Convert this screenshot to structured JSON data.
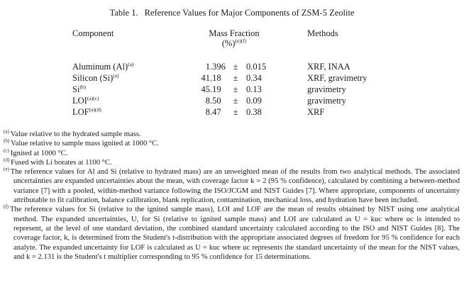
{
  "title": {
    "label": "Table 1.",
    "text": "Reference Values for Major Components of ZSM-5 Zeolite"
  },
  "table": {
    "headers": {
      "component": "Component",
      "mass_fraction_line1": "Mass Fraction",
      "mass_fraction_line2": "(%)",
      "mass_fraction_sup": "(e)(f)",
      "methods": "Methods"
    },
    "plus_minus": "±",
    "rows": [
      {
        "component": "Aluminum (Al)",
        "sup": "(a)",
        "value": "1.396",
        "uncertainty": "0.015",
        "methods": "XRF, INAA"
      },
      {
        "component": "Silicon (Si)",
        "sup": "(a)",
        "value": "41.18",
        "uncertainty": "0.34",
        "methods": "XRF, gravimetry"
      },
      {
        "component": "Si",
        "sup": "(b)",
        "value": "45.19",
        "uncertainty": "0.13",
        "methods": "gravimetry"
      },
      {
        "component": "LOI",
        "sup": "(a)(c)",
        "value": "8.50",
        "uncertainty": "0.09",
        "methods": "gravimetry"
      },
      {
        "component": "LOF",
        "sup": "(a)(d)",
        "value": "8.47",
        "uncertainty": "0.38",
        "methods": "XRF"
      }
    ]
  },
  "footnotes": [
    {
      "marker": "(a)",
      "text": "Value relative to the hydrated sample mass."
    },
    {
      "marker": "(b)",
      "text": "Value relative to sample mass ignited at 1000 °C."
    },
    {
      "marker": "(c)",
      "text": "Ignited at 1000 °C."
    },
    {
      "marker": "(d)",
      "text": "Fused with Li borates at 1100 °C."
    },
    {
      "marker": "(e)",
      "text": "The reference values for Al and Si (relative to hydrated mass) are an unweighted mean of the results from two analytical methods.  The associated uncertainties are expanded uncertainties about the mean, with coverage factor k = 2 (95 % confidence), calculated by combining a between-method variance [7] with a pooled, within-method variance following the ISO/JCGM and NIST Guides [7].  Where appropriate, components of uncertainty attributable to fit calibration, balance calibration, blank replication, contamination, mechanical loss, and hydration have been included."
    },
    {
      "marker": "(f)",
      "text": "The reference values for Si (relative to the ignited sample mass), LOI and LOF are the mean of results obtained by NIST using one analytical method.  The expanded uncertainties, U, for Si (relative to ignited sample mass) and LOI are calculated as U = kuc where uc is intended to represent, at the level of one standard deviation, the combined standard uncertainty calculated according to the ISO and NIST Guides [8].  The coverage factor, k, is determined from the Student's t-distribution with the appropriate associated degrees of freedom for 95 % confidence for each analyte.  The expanded uncertainty for LOF is calculated as U = kuc where uc represents the standard uncertainty of the mean for the NIST values, and k = 2.131 is the Student's t multiplier corresponding to 95 % confidence for 15 determinations."
    }
  ]
}
